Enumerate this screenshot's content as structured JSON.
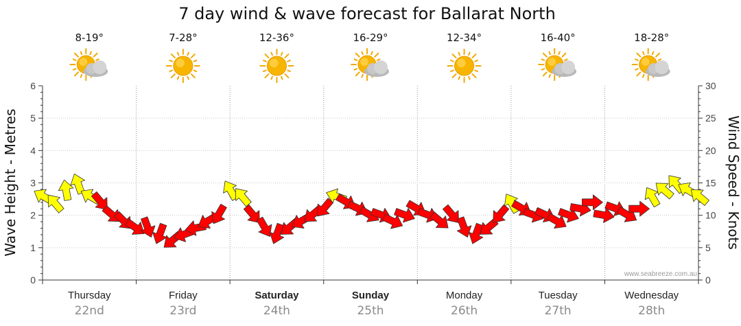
{
  "chart_data": {
    "type": "line",
    "title": "7 day wind & wave forecast for Ballarat North",
    "ylabel_left": "Wave Height - Metres",
    "ylabel_right": "Wind Speed - Knots",
    "ylim_left": [
      0,
      6
    ],
    "ylim_right": [
      0,
      30
    ],
    "yticks_left": [
      "0",
      "1",
      "2",
      "3",
      "4",
      "5",
      "6"
    ],
    "yticks_right": [
      "0",
      "5",
      "10",
      "15",
      "20",
      "25",
      "30"
    ],
    "grid": true,
    "credit": "www.seabreeze.com.au",
    "days": [
      {
        "name": "Thursday",
        "date": "22nd",
        "temp": "8-19°",
        "weather": "partly-cloudy",
        "bold": false
      },
      {
        "name": "Friday",
        "date": "23rd",
        "temp": "7-28°",
        "weather": "sunny",
        "bold": false
      },
      {
        "name": "Saturday",
        "date": "24th",
        "temp": "12-36°",
        "weather": "sunny",
        "bold": true
      },
      {
        "name": "Sunday",
        "date": "25th",
        "temp": "16-29°",
        "weather": "partly-cloudy",
        "bold": true
      },
      {
        "name": "Monday",
        "date": "26th",
        "temp": "12-34°",
        "weather": "sunny",
        "bold": false
      },
      {
        "name": "Tuesday",
        "date": "27th",
        "temp": "16-40°",
        "weather": "partly-cloudy",
        "bold": false
      },
      {
        "name": "Wednesday",
        "date": "28th",
        "temp": "18-28°",
        "weather": "partly-cloudy",
        "bold": false
      }
    ],
    "series": [
      {
        "units": "knots",
        "x_hours": [
          0,
          3,
          6,
          9,
          12,
          15,
          18,
          21,
          24,
          27,
          30,
          33,
          36,
          39,
          42,
          45,
          48,
          51,
          54,
          57,
          60,
          63,
          66,
          69,
          72,
          75,
          78,
          81,
          84,
          87,
          90,
          93,
          96,
          99,
          102,
          105,
          108,
          111,
          114,
          117,
          120,
          123,
          126,
          129,
          132,
          135,
          138,
          141,
          144,
          147,
          150,
          153,
          156,
          159,
          162,
          165,
          168
        ],
        "values": [
          13,
          12,
          14,
          15,
          13,
          12,
          10,
          9,
          8,
          8,
          7,
          6,
          7,
          8,
          9,
          10,
          14,
          13,
          10,
          8,
          7,
          8,
          9,
          10,
          11,
          13,
          12,
          11,
          10,
          10,
          9,
          10,
          11,
          10,
          9,
          10,
          8,
          7,
          8,
          10,
          12,
          11,
          10,
          10,
          9,
          10,
          11,
          12,
          10,
          11,
          10,
          11,
          13,
          14,
          15,
          14,
          13
        ],
        "colors": [
          "#ffff00",
          "#ffff00",
          "#ffff00",
          "#ffff00",
          "#ffff00",
          "#ff0000",
          "#ff0000",
          "#ff0000",
          "#ff0000",
          "#ff0000",
          "#ff0000",
          "#ff0000",
          "#ff0000",
          "#ff0000",
          "#ff0000",
          "#ff0000",
          "#ffff00",
          "#ffff00",
          "#ff0000",
          "#ff0000",
          "#ff0000",
          "#ff0000",
          "#ff0000",
          "#ff0000",
          "#ff0000",
          "#ffff00",
          "#ff0000",
          "#ff0000",
          "#ff0000",
          "#ff0000",
          "#ff0000",
          "#ff0000",
          "#ff0000",
          "#ff0000",
          "#ff0000",
          "#ff0000",
          "#ff0000",
          "#ff0000",
          "#ff0000",
          "#ff0000",
          "#ffff00",
          "#ff0000",
          "#ff0000",
          "#ff0000",
          "#ff0000",
          "#ff0000",
          "#ff0000",
          "#ff0000",
          "#ff0000",
          "#ff0000",
          "#ff0000",
          "#ff0000",
          "#ffff00",
          "#ffff00",
          "#ffff00",
          "#ffff00",
          "#ffff00"
        ],
        "directions_deg": [
          300,
          320,
          350,
          340,
          300,
          140,
          130,
          135,
          125,
          160,
          200,
          230,
          250,
          260,
          240,
          210,
          330,
          320,
          140,
          150,
          200,
          230,
          240,
          230,
          220,
          290,
          120,
          115,
          120,
          110,
          115,
          110,
          120,
          110,
          130,
          140,
          160,
          200,
          230,
          220,
          330,
          120,
          110,
          115,
          120,
          110,
          100,
          90,
          100,
          110,
          120,
          90,
          330,
          310,
          320,
          300,
          310
        ]
      }
    ]
  }
}
